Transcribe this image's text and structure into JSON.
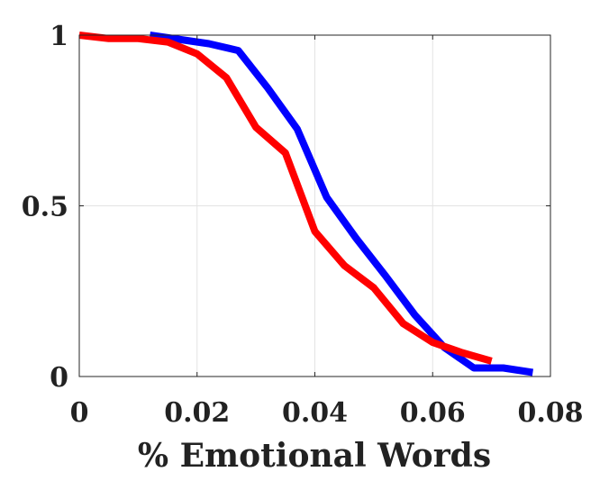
{
  "chart_data": {
    "type": "line",
    "title": "",
    "xlabel": "% Emotional Words",
    "ylabel": "",
    "xlim": [
      0,
      0.08
    ],
    "ylim": [
      0,
      1
    ],
    "grid": true,
    "x_ticks": [
      0,
      0.02,
      0.04,
      0.06,
      0.08
    ],
    "x_tick_labels": [
      "0",
      "0.02",
      "0.04",
      "0.06",
      "0.08"
    ],
    "y_ticks": [
      0,
      0.5,
      1
    ],
    "y_tick_labels": [
      "0",
      "0.5",
      "1"
    ],
    "series": [
      {
        "color": "#0000ff",
        "points": [
          [
            0.012,
            1.0
          ],
          [
            0.022,
            0.975
          ],
          [
            0.027,
            0.955
          ],
          [
            0.032,
            0.845
          ],
          [
            0.037,
            0.725
          ],
          [
            0.042,
            0.525
          ],
          [
            0.047,
            0.405
          ],
          [
            0.052,
            0.295
          ],
          [
            0.057,
            0.18
          ],
          [
            0.062,
            0.085
          ],
          [
            0.067,
            0.025
          ],
          [
            0.072,
            0.025
          ],
          [
            0.077,
            0.012
          ]
        ]
      },
      {
        "color": "#ff0000",
        "points": [
          [
            0.0,
            1.0
          ],
          [
            0.005,
            0.99
          ],
          [
            0.01,
            0.99
          ],
          [
            0.015,
            0.98
          ],
          [
            0.02,
            0.945
          ],
          [
            0.025,
            0.875
          ],
          [
            0.03,
            0.73
          ],
          [
            0.035,
            0.655
          ],
          [
            0.04,
            0.425
          ],
          [
            0.045,
            0.325
          ],
          [
            0.05,
            0.26
          ],
          [
            0.055,
            0.155
          ],
          [
            0.06,
            0.1
          ],
          [
            0.065,
            0.07
          ],
          [
            0.07,
            0.045
          ]
        ]
      }
    ]
  }
}
